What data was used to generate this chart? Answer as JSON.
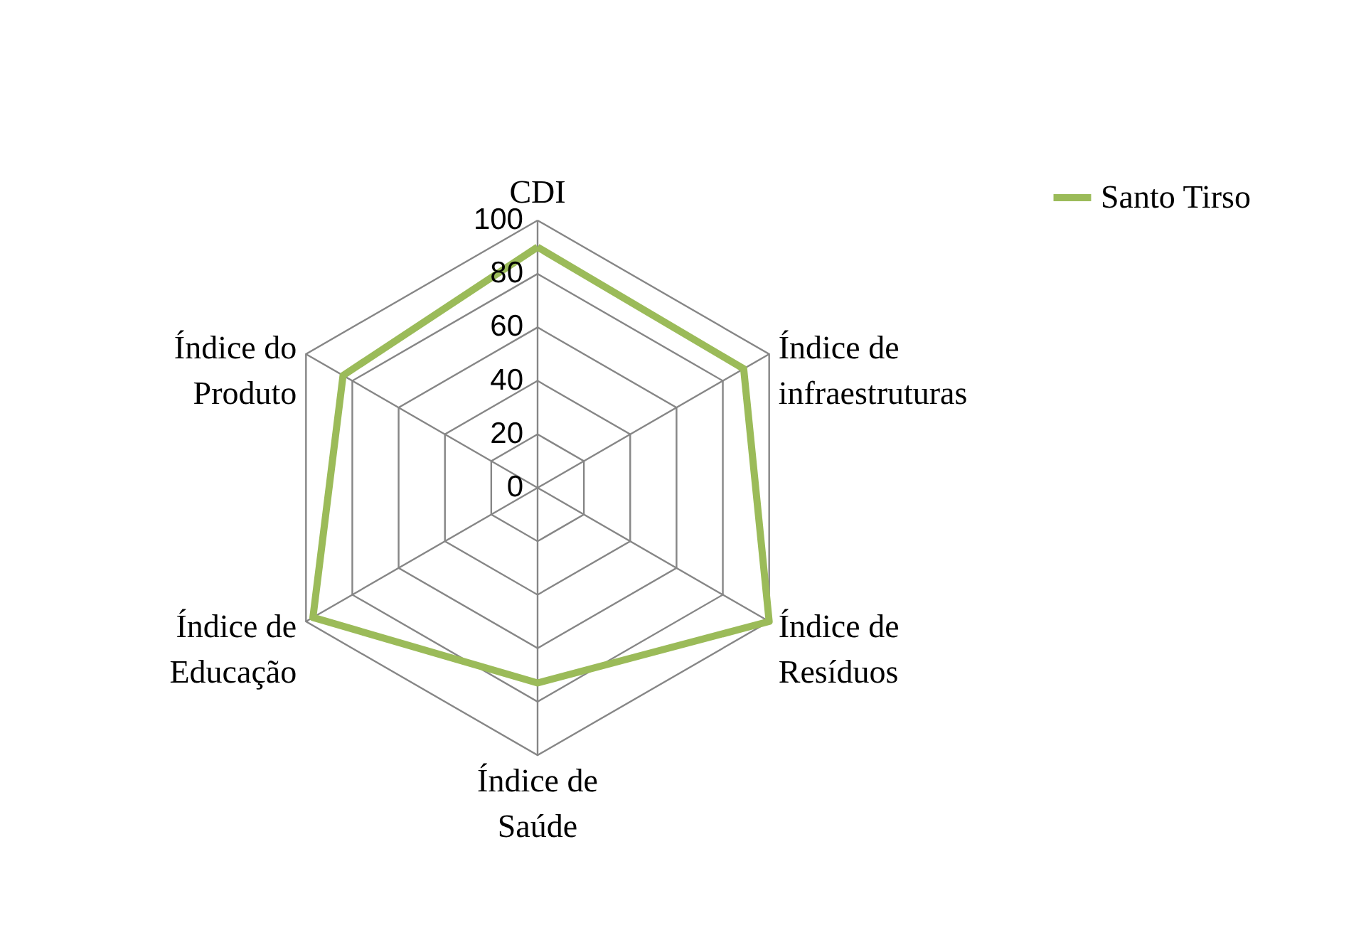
{
  "chart_data": {
    "type": "radar",
    "categories": [
      "CDI",
      "Índice de\ninfraestruturas",
      "Índice de\nResíduos",
      "Índice de\nSaúde",
      "Índice de\nEducação",
      "Índice do\nProduto"
    ],
    "series": [
      {
        "name": "Santo Tirso",
        "color": "#9bbb59",
        "values": [
          90,
          89,
          100,
          73,
          97,
          84
        ]
      }
    ],
    "ylim": [
      0,
      100
    ],
    "yticks": [
      0,
      20,
      40,
      60,
      80,
      100
    ],
    "grid": true,
    "legend": "right",
    "marker": "none"
  }
}
